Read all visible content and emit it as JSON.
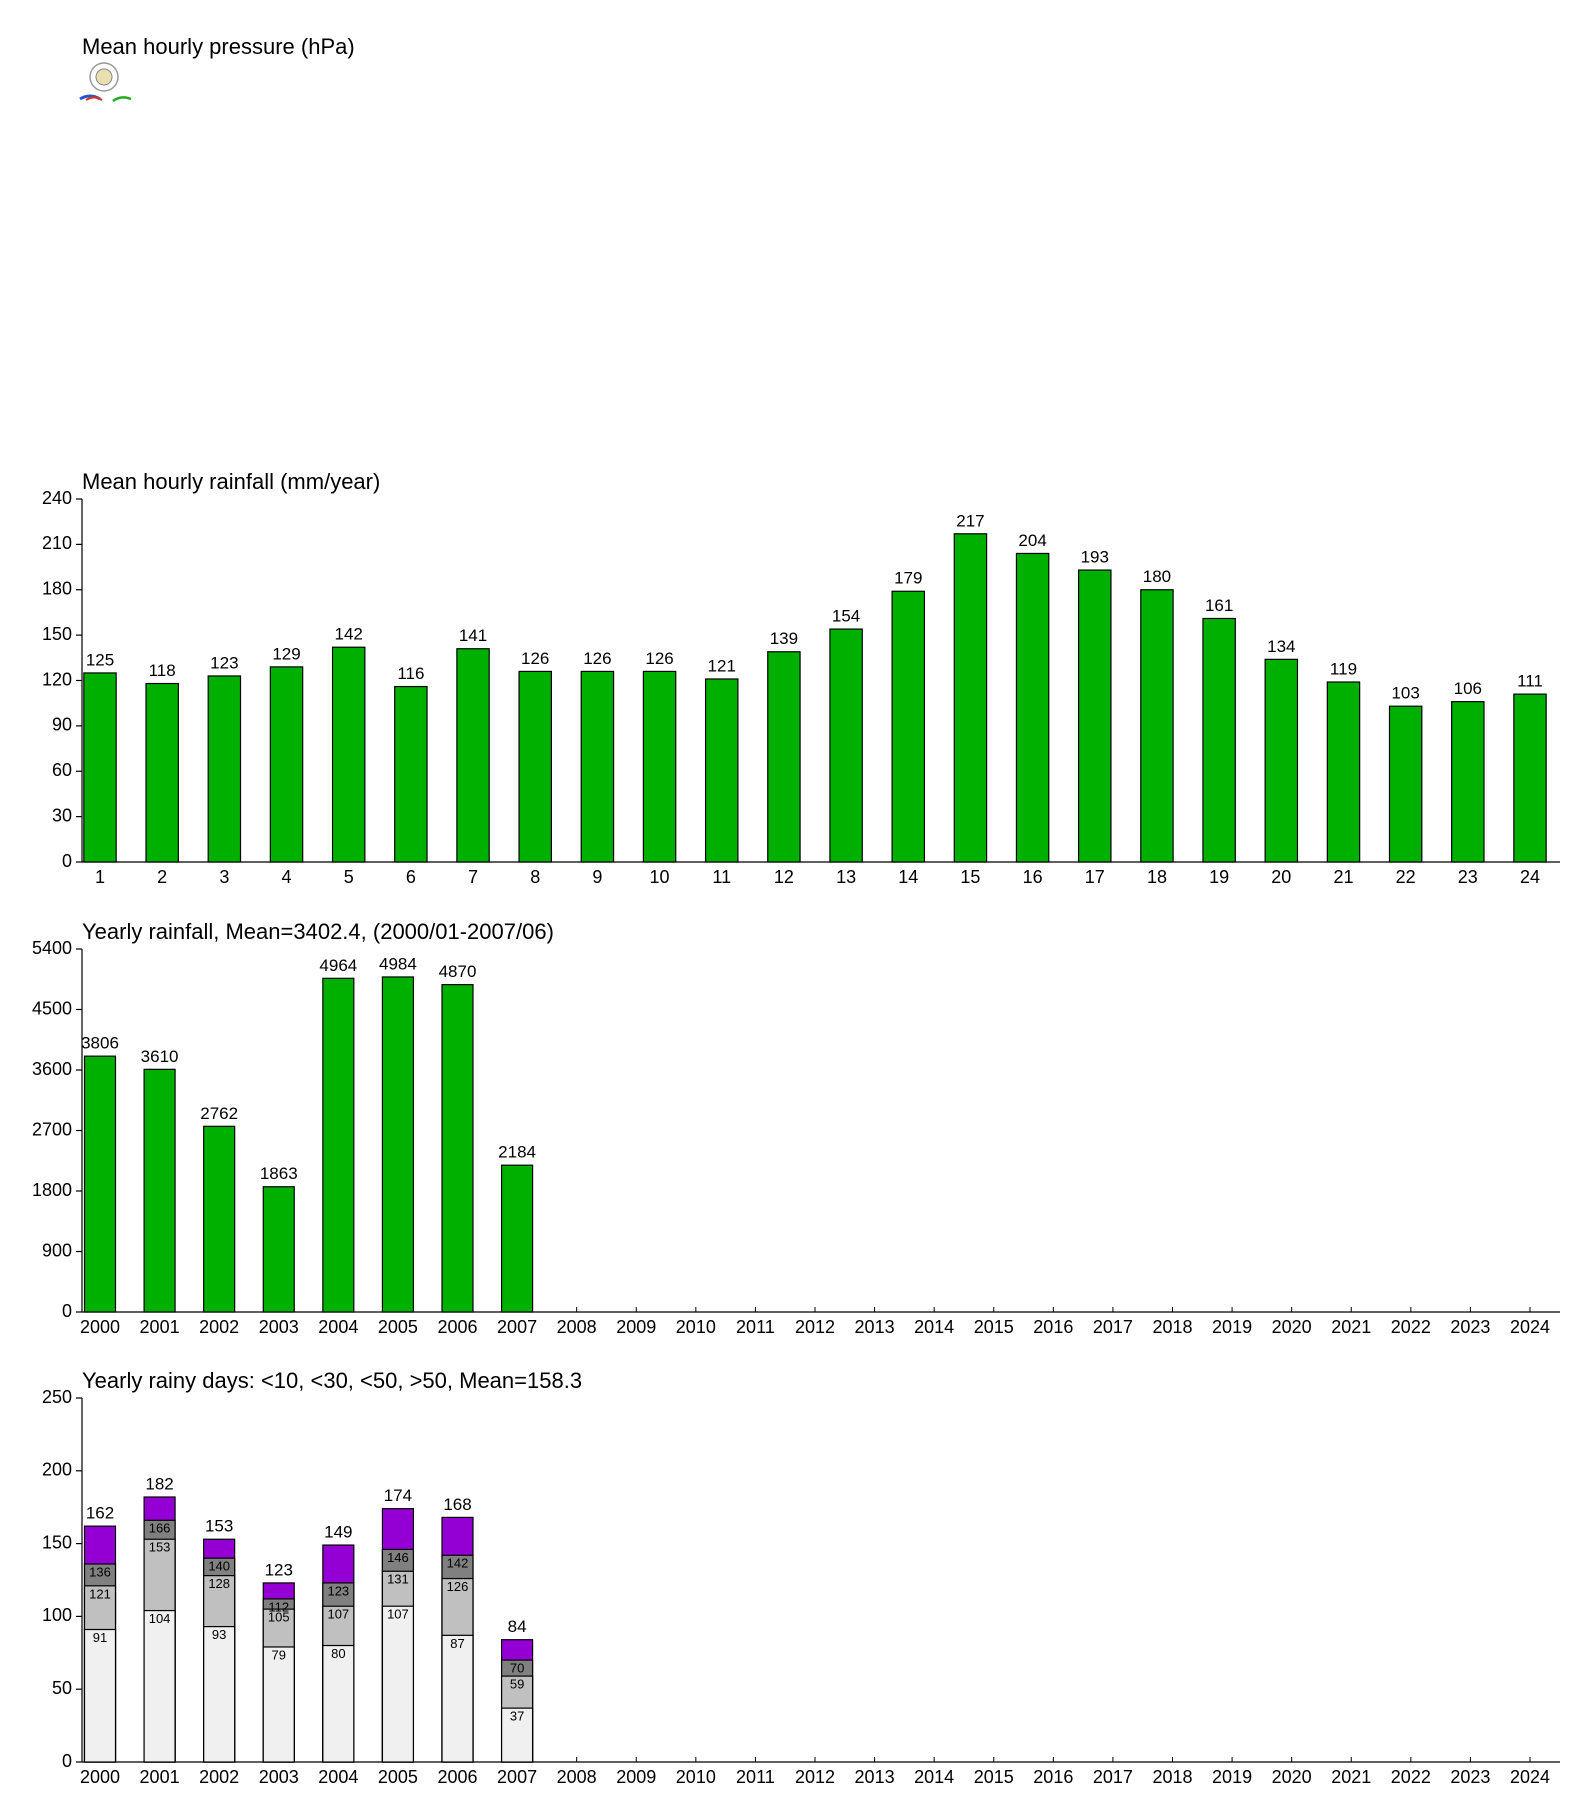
{
  "chart_data": [
    {
      "type": "bar",
      "title": "Mean hourly pressure (hPa)"
    },
    {
      "type": "bar",
      "title": "Mean hourly rainfall (mm/year)",
      "categories": [
        "1",
        "2",
        "3",
        "4",
        "5",
        "6",
        "7",
        "8",
        "9",
        "10",
        "11",
        "12",
        "13",
        "14",
        "15",
        "16",
        "17",
        "18",
        "19",
        "20",
        "21",
        "22",
        "23",
        "24"
      ],
      "values": [
        125,
        118,
        123,
        129,
        142,
        116,
        141,
        126,
        126,
        126,
        121,
        139,
        154,
        179,
        217,
        204,
        193,
        180,
        161,
        134,
        119,
        103,
        106,
        111
      ],
      "color": "#00b000",
      "ylim": [
        0,
        240
      ],
      "yticks": [
        0,
        30,
        60,
        90,
        120,
        150,
        180,
        210,
        240
      ],
      "grid": false
    },
    {
      "type": "bar",
      "title": "Yearly rainfall, Mean=3402.4, (2000/01-2007/06)",
      "categories": [
        "2000",
        "2001",
        "2002",
        "2003",
        "2004",
        "2005",
        "2006",
        "2007",
        "2008",
        "2009",
        "2010",
        "2011",
        "2012",
        "2013",
        "2014",
        "2015",
        "2016",
        "2017",
        "2018",
        "2019",
        "2020",
        "2021",
        "2022",
        "2023",
        "2024"
      ],
      "values": [
        3806,
        3610,
        2762,
        1863,
        4964,
        4984,
        4870,
        2184,
        null,
        null,
        null,
        null,
        null,
        null,
        null,
        null,
        null,
        null,
        null,
        null,
        null,
        null,
        null,
        null,
        null
      ],
      "color": "#00b000",
      "ylim": [
        0,
        5400
      ],
      "yticks": [
        0,
        900,
        1800,
        2700,
        3600,
        4500,
        5400
      ],
      "grid": false
    },
    {
      "type": "bar",
      "title": "Yearly rainy days: <10, <30, <50, >50, Mean=158.3",
      "categories": [
        "2000",
        "2001",
        "2002",
        "2003",
        "2004",
        "2005",
        "2006",
        "2007",
        "2008",
        "2009",
        "2010",
        "2011",
        "2012",
        "2013",
        "2014",
        "2015",
        "2016",
        "2017",
        "2018",
        "2019",
        "2020",
        "2021",
        "2022",
        "2023",
        "2024"
      ],
      "series": [
        {
          "color": "#9400d3",
          "values": [
            162,
            182,
            153,
            123,
            149,
            174,
            168,
            84,
            null,
            null,
            null,
            null,
            null,
            null,
            null,
            null,
            null,
            null,
            null,
            null,
            null,
            null,
            null,
            null,
            null
          ]
        },
        {
          "color": "#808080",
          "values": [
            136,
            166,
            140,
            112,
            123,
            146,
            142,
            70,
            null,
            null,
            null,
            null,
            null,
            null,
            null,
            null,
            null,
            null,
            null,
            null,
            null,
            null,
            null,
            null,
            null
          ]
        },
        {
          "color": "#c0c0c0",
          "values": [
            121,
            153,
            128,
            105,
            107,
            131,
            126,
            59,
            null,
            null,
            null,
            null,
            null,
            null,
            null,
            null,
            null,
            null,
            null,
            null,
            null,
            null,
            null,
            null,
            null
          ]
        },
        {
          "color": "#f0f0f0",
          "values": [
            91,
            104,
            93,
            79,
            80,
            107,
            87,
            37,
            null,
            null,
            null,
            null,
            null,
            null,
            null,
            null,
            null,
            null,
            null,
            null,
            null,
            null,
            null,
            null,
            null
          ]
        }
      ],
      "ylim": [
        0,
        250
      ],
      "yticks": [
        0,
        50,
        100,
        150,
        200,
        250
      ],
      "grid": false
    }
  ]
}
